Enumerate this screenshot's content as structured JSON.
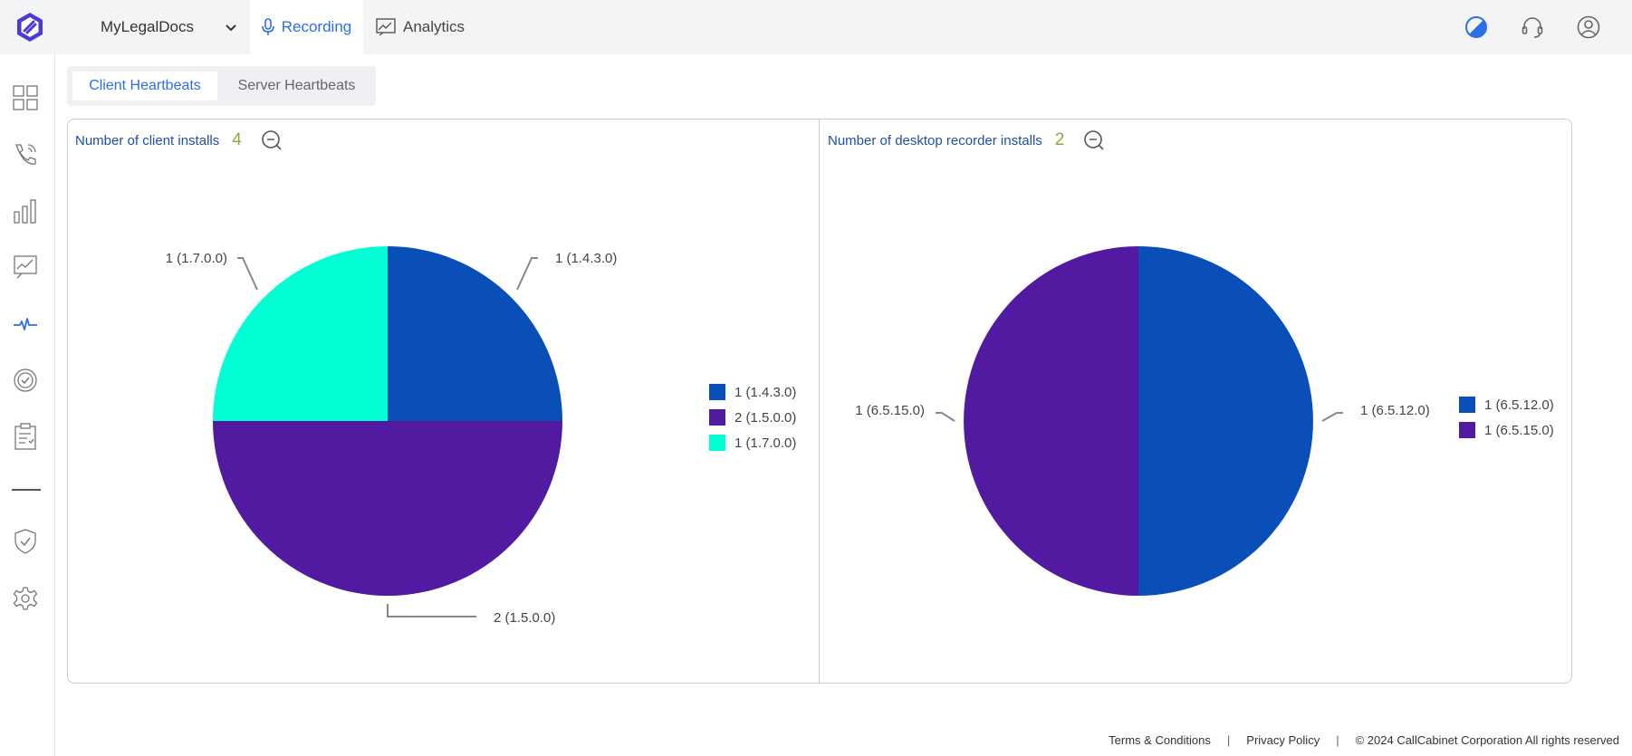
{
  "topbar": {
    "account_name": "MyLegalDocs",
    "nav_tabs": [
      {
        "label": "Recording",
        "active": true
      },
      {
        "label": "Analytics",
        "active": false
      }
    ]
  },
  "subtabs": {
    "client": "Client Heartbeats",
    "server": "Server Heartbeats",
    "active": "Client Heartbeats"
  },
  "charts": {
    "client": {
      "title": "Number of client installs",
      "count": "4"
    },
    "desktop": {
      "title": "Number of desktop recorder installs",
      "count": "2"
    }
  },
  "chart_data": [
    {
      "type": "pie",
      "title": "Number of client installs",
      "slices": [
        {
          "label": "1 (1.4.3.0)",
          "value": 1,
          "color": "#0a4fb7"
        },
        {
          "label": "2 (1.5.0.0)",
          "value": 2,
          "color": "#521aa0"
        },
        {
          "label": "1 (1.7.0.0)",
          "value": 1,
          "color": "#00ffd5"
        }
      ],
      "legend": "right"
    },
    {
      "type": "pie",
      "title": "Number of desktop recorder installs",
      "slices": [
        {
          "label": "1 (6.5.12.0)",
          "value": 1,
          "color": "#0a4fb7"
        },
        {
          "label": "1 (6.5.15.0)",
          "value": 1,
          "color": "#521aa0"
        }
      ],
      "legend": "right"
    }
  ],
  "footer": {
    "terms": "Terms & Conditions",
    "privacy": "Privacy Policy",
    "copyright": "© 2024 CallCabinet Corporation All rights reserved",
    "separator": "|"
  },
  "colors": {
    "accent": "#2b6fe6",
    "title_blue": "#1f4fa8",
    "count_green": "#8aab3a"
  }
}
